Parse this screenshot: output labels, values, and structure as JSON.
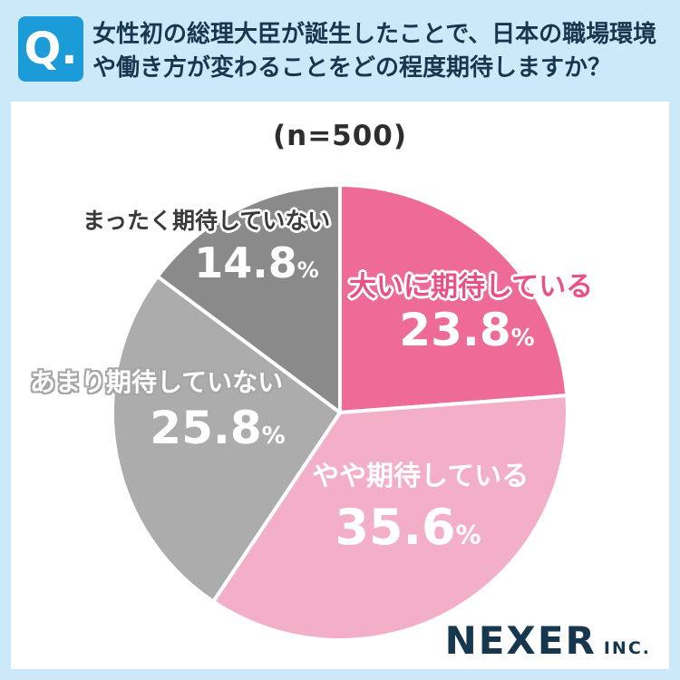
{
  "colors": {
    "frame_blue": "#CBE9F8",
    "badge_blue": "#1B9CD8",
    "navy": "#17374F"
  },
  "header": {
    "badge": "Q.",
    "line1": "女性初の総理大臣が誕生したことで、日本の職場環境",
    "line2": "や働き方が変わることをどの程度期待しますか？"
  },
  "sample_size": "(n=500)",
  "percent_sign": "%",
  "chart_data": {
    "type": "pie",
    "title": "女性初の総理大臣が誕生したことで、日本の職場環境や働き方が変わることをどの程度期待しますか？",
    "sample_n": 500,
    "start_angle": "top",
    "direction": "clockwise",
    "labels_position": "on-slice",
    "legend": "none",
    "slices": [
      {
        "label": "大いに期待している",
        "value": 23.8,
        "color": "#EE6A97"
      },
      {
        "label": "やや期待している",
        "value": 35.6,
        "color": "#F3AFC7"
      },
      {
        "label": "あまり期待していない",
        "value": 25.8,
        "color": "#ACACAC"
      },
      {
        "label": "まったく期待していない",
        "value": 14.8,
        "color": "#8A8A8A"
      }
    ]
  },
  "logo": {
    "name": "NEXER",
    "suffix": "INC."
  }
}
